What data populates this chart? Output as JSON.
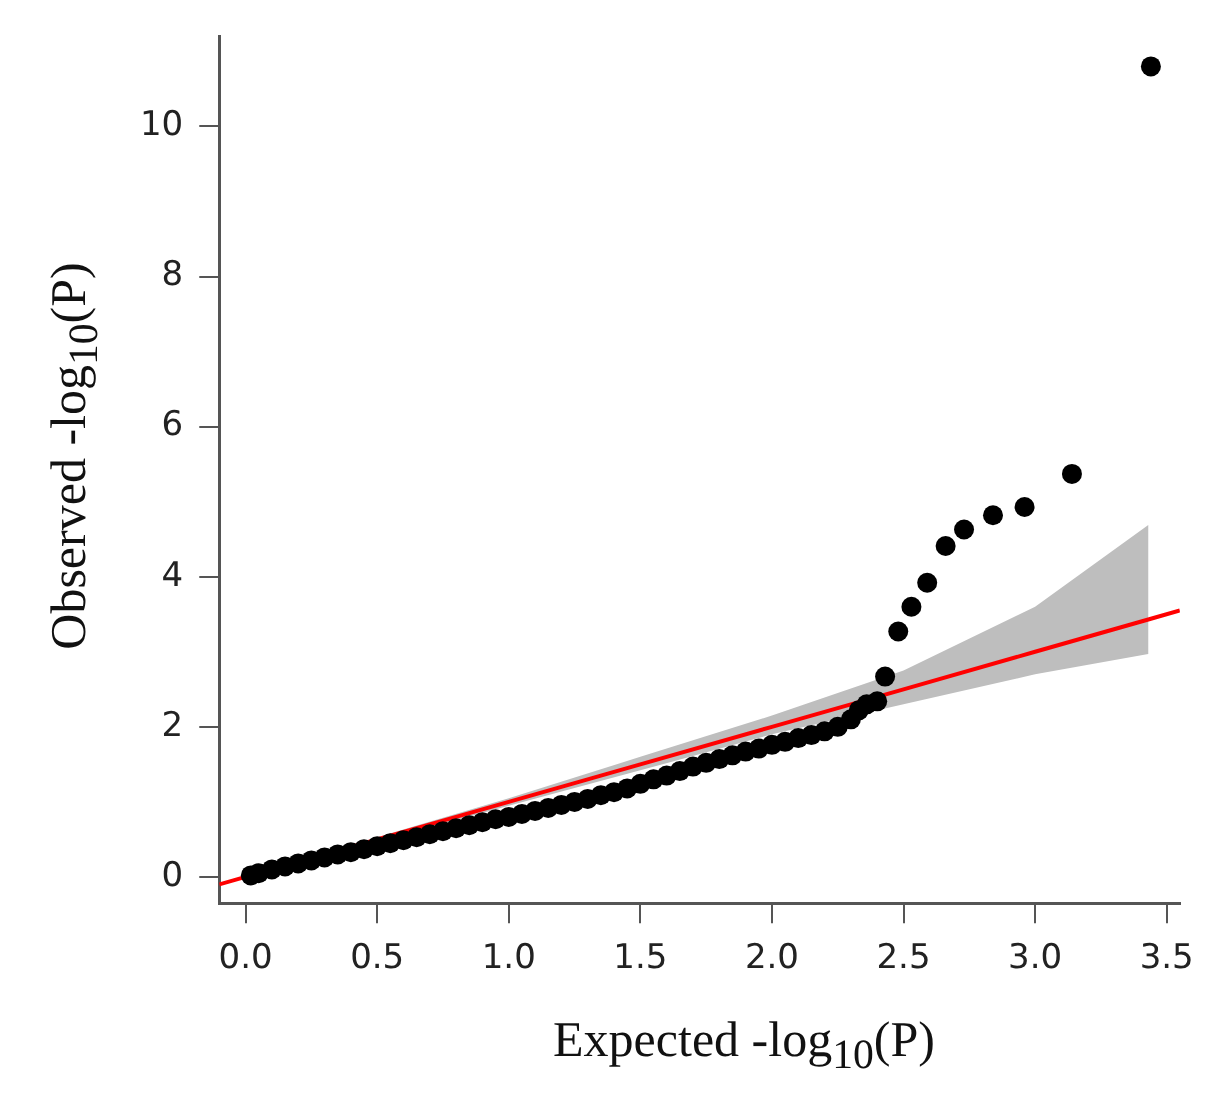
{
  "chart_data": {
    "type": "scatter",
    "xlabel": "Expected -log$_{10}$(P)",
    "ylabel": "Observed -log$_{10}$(P)",
    "xlim": [
      -0.1,
      3.55
    ],
    "ylim": [
      -0.35,
      11.2
    ],
    "xticks": [
      {
        "value": 0,
        "label": "0.0"
      },
      0.5,
      {
        "value": 1,
        "label": "1.0"
      },
      1.5,
      {
        "value": 2,
        "label": "2.0"
      },
      2.5,
      {
        "value": 3,
        "label": "3.0"
      },
      3.5
    ],
    "yticks": [
      0,
      2,
      4,
      6,
      8,
      10
    ],
    "grid": false,
    "legend": false,
    "marker": "circle",
    "series": [
      {
        "color": "#000000",
        "x": [
          0.02,
          0.05,
          0.1,
          0.15,
          0.2,
          0.25,
          0.3,
          0.35,
          0.4,
          0.45,
          0.5,
          0.55,
          0.6,
          0.65,
          0.7,
          0.75,
          0.8,
          0.85,
          0.9,
          0.95,
          1.0,
          1.05,
          1.1,
          1.15,
          1.2,
          1.25,
          1.3,
          1.35,
          1.4,
          1.45,
          1.5,
          1.55,
          1.6,
          1.65,
          1.7,
          1.75,
          1.8,
          1.85,
          1.9,
          1.95,
          2.0,
          2.05,
          2.1,
          2.15,
          2.2,
          2.25,
          2.3,
          2.33,
          2.36,
          2.4,
          2.43,
          2.48,
          2.53,
          2.59,
          2.66,
          2.73,
          2.84,
          2.96,
          3.14,
          3.44
        ],
        "values": [
          0.02,
          0.05,
          0.1,
          0.14,
          0.18,
          0.22,
          0.26,
          0.3,
          0.33,
          0.37,
          0.41,
          0.45,
          0.49,
          0.53,
          0.57,
          0.61,
          0.65,
          0.69,
          0.73,
          0.77,
          0.8,
          0.84,
          0.88,
          0.92,
          0.96,
          1.0,
          1.04,
          1.09,
          1.13,
          1.18,
          1.24,
          1.3,
          1.35,
          1.41,
          1.47,
          1.52,
          1.57,
          1.62,
          1.67,
          1.71,
          1.76,
          1.8,
          1.85,
          1.89,
          1.94,
          2.0,
          2.1,
          2.22,
          2.3,
          2.34,
          2.67,
          3.27,
          3.6,
          3.92,
          4.41,
          4.63,
          4.82,
          4.93,
          5.37,
          10.8
        ]
      },
      {
        "type": "line",
        "color": "#ff0000",
        "marker": "none",
        "x": [
          -0.1,
          0,
          0.5,
          1.0,
          1.5,
          2.0,
          2.5,
          3.0,
          3.43,
          3.55
        ],
        "values": [
          -0.1,
          0,
          0.5,
          1.0,
          1.5,
          2.0,
          2.5,
          3.0,
          3.43,
          3.55
        ],
        "lower": [
          null,
          0,
          0.47,
          0.95,
          1.42,
          1.9,
          2.3,
          2.7,
          2.97,
          null
        ],
        "upper": [
          null,
          0,
          0.53,
          1.05,
          1.6,
          2.15,
          2.75,
          3.6,
          4.69,
          null
        ]
      }
    ]
  }
}
